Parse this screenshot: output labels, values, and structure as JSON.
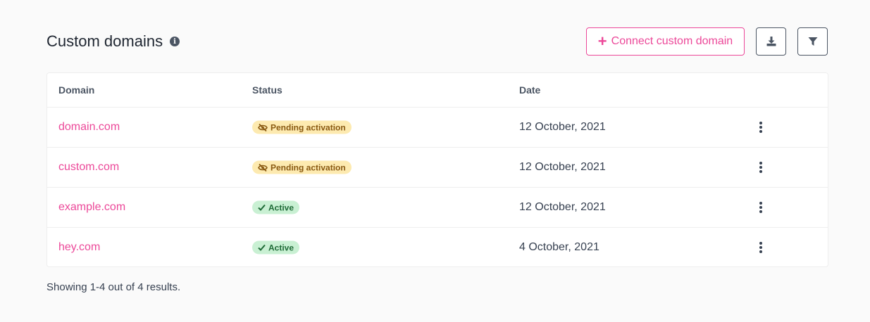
{
  "header": {
    "title": "Custom domains",
    "info_icon": "info-icon",
    "connect_label": "Connect custom domain",
    "download_icon": "download-icon",
    "filter_icon": "filter-icon"
  },
  "colors": {
    "accent": "#ec4899",
    "pending_bg": "#fdeab0",
    "active_bg": "#c9f0d3"
  },
  "table": {
    "columns": [
      "Domain",
      "Status",
      "Date"
    ],
    "rows": [
      {
        "domain": "domain.com",
        "status": "Pending activation",
        "status_type": "pending",
        "date": "12 October, 2021"
      },
      {
        "domain": "custom.com",
        "status": "Pending activation",
        "status_type": "pending",
        "date": "12 October, 2021"
      },
      {
        "domain": "example.com",
        "status": "Active",
        "status_type": "active",
        "date": "12 October, 2021"
      },
      {
        "domain": "hey.com",
        "status": "Active",
        "status_type": "active",
        "date": "4 October, 2021"
      }
    ]
  },
  "footer": {
    "summary": "Showing 1-4 out of 4 results."
  }
}
